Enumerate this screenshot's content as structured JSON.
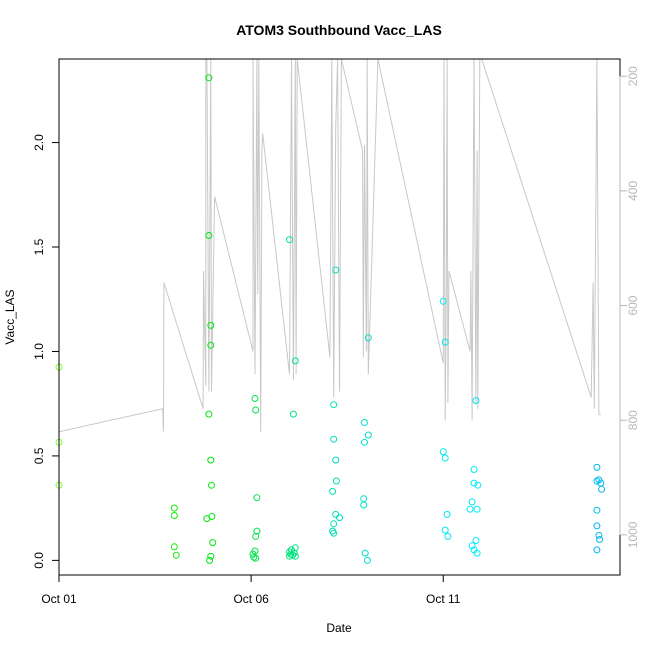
{
  "chart_data": {
    "type": "scatter",
    "title": "ATOM3 Southbound Vacc_LAS",
    "xlabel": "Date",
    "ylabel": "Vacc_LAS",
    "x_ticks": [
      "Oct 01",
      "Oct 06",
      "Oct 11"
    ],
    "x_tick_days": [
      1,
      6,
      11
    ],
    "xlim_days": [
      1,
      15.6
    ],
    "ylim": [
      -0.07,
      2.4
    ],
    "y_ticks": [
      0.0,
      0.5,
      1.0,
      1.5,
      2.0
    ],
    "y_tick_labels": [
      "0.0",
      "0.5",
      "1.0",
      "1.5",
      "2.0"
    ],
    "y2_ticks": [
      200,
      400,
      600,
      800,
      1000
    ],
    "y2_tick_labels": [
      "200",
      "400",
      "600",
      "800",
      "1000"
    ],
    "y2lim_reversed": [
      170,
      1070
    ],
    "grid": false,
    "legend": "none",
    "point_color_scale": [
      "#7cff2e",
      "#00e800",
      "#00e0c0",
      "#00eaff",
      "#00b0f0"
    ],
    "line_color": "#c8c8c8",
    "scatter": [
      {
        "x": 1.0,
        "y": 0.925
      },
      {
        "x": 1.0,
        "y": 0.565
      },
      {
        "x": 1.0,
        "y": 0.36
      },
      {
        "x": 4.0,
        "y": 0.25
      },
      {
        "x": 4.0,
        "y": 0.215
      },
      {
        "x": 4.0,
        "y": 0.065
      },
      {
        "x": 4.05,
        "y": 0.025
      },
      {
        "x": 4.9,
        "y": 2.31
      },
      {
        "x": 4.9,
        "y": 1.555
      },
      {
        "x": 4.95,
        "y": 1.125
      },
      {
        "x": 4.95,
        "y": 1.03
      },
      {
        "x": 4.9,
        "y": 0.7
      },
      {
        "x": 4.95,
        "y": 0.48
      },
      {
        "x": 4.97,
        "y": 0.36
      },
      {
        "x": 4.98,
        "y": 0.21
      },
      {
        "x": 4.85,
        "y": 0.2
      },
      {
        "x": 5.0,
        "y": 0.085
      },
      {
        "x": 4.95,
        "y": 0.02
      },
      {
        "x": 4.92,
        "y": 0.0
      },
      {
        "x": 6.1,
        "y": 0.775
      },
      {
        "x": 6.12,
        "y": 0.72
      },
      {
        "x": 6.15,
        "y": 0.3
      },
      {
        "x": 6.15,
        "y": 0.14
      },
      {
        "x": 6.12,
        "y": 0.115
      },
      {
        "x": 6.1,
        "y": 0.045
      },
      {
        "x": 6.05,
        "y": 0.03
      },
      {
        "x": 6.07,
        "y": 0.015
      },
      {
        "x": 6.12,
        "y": 0.01
      },
      {
        "x": 7.0,
        "y": 1.535
      },
      {
        "x": 7.15,
        "y": 0.955
      },
      {
        "x": 7.1,
        "y": 0.7
      },
      {
        "x": 7.15,
        "y": 0.06
      },
      {
        "x": 7.05,
        "y": 0.05
      },
      {
        "x": 7.0,
        "y": 0.04
      },
      {
        "x": 7.12,
        "y": 0.035
      },
      {
        "x": 7.03,
        "y": 0.03
      },
      {
        "x": 7.08,
        "y": 0.025
      },
      {
        "x": 7.0,
        "y": 0.02
      },
      {
        "x": 7.15,
        "y": 0.02
      },
      {
        "x": 8.2,
        "y": 1.39
      },
      {
        "x": 8.15,
        "y": 0.745
      },
      {
        "x": 8.15,
        "y": 0.58
      },
      {
        "x": 8.2,
        "y": 0.48
      },
      {
        "x": 8.22,
        "y": 0.38
      },
      {
        "x": 8.12,
        "y": 0.33
      },
      {
        "x": 8.2,
        "y": 0.22
      },
      {
        "x": 8.3,
        "y": 0.205
      },
      {
        "x": 8.15,
        "y": 0.175
      },
      {
        "x": 8.12,
        "y": 0.14
      },
      {
        "x": 8.15,
        "y": 0.13
      },
      {
        "x": 9.05,
        "y": 1.065
      },
      {
        "x": 8.95,
        "y": 0.66
      },
      {
        "x": 9.05,
        "y": 0.6
      },
      {
        "x": 8.95,
        "y": 0.565
      },
      {
        "x": 8.93,
        "y": 0.295
      },
      {
        "x": 8.93,
        "y": 0.265
      },
      {
        "x": 8.97,
        "y": 0.035
      },
      {
        "x": 9.03,
        "y": 0.0
      },
      {
        "x": 11.0,
        "y": 1.24
      },
      {
        "x": 11.05,
        "y": 1.045
      },
      {
        "x": 11.0,
        "y": 0.52
      },
      {
        "x": 11.05,
        "y": 0.49
      },
      {
        "x": 11.1,
        "y": 0.22
      },
      {
        "x": 11.05,
        "y": 0.145
      },
      {
        "x": 11.12,
        "y": 0.115
      },
      {
        "x": 11.85,
        "y": 0.765
      },
      {
        "x": 11.8,
        "y": 0.435
      },
      {
        "x": 11.8,
        "y": 0.37
      },
      {
        "x": 11.9,
        "y": 0.36
      },
      {
        "x": 11.75,
        "y": 0.28
      },
      {
        "x": 11.7,
        "y": 0.245
      },
      {
        "x": 11.88,
        "y": 0.245
      },
      {
        "x": 11.85,
        "y": 0.095
      },
      {
        "x": 11.75,
        "y": 0.07
      },
      {
        "x": 11.8,
        "y": 0.05
      },
      {
        "x": 11.88,
        "y": 0.035
      },
      {
        "x": 15.0,
        "y": 0.445
      },
      {
        "x": 15.05,
        "y": 0.385
      },
      {
        "x": 15.1,
        "y": 0.37
      },
      {
        "x": 15.0,
        "y": 0.38
      },
      {
        "x": 15.12,
        "y": 0.34
      },
      {
        "x": 15.0,
        "y": 0.24
      },
      {
        "x": 15.0,
        "y": 0.165
      },
      {
        "x": 15.05,
        "y": 0.12
      },
      {
        "x": 15.07,
        "y": 0.1
      },
      {
        "x": 15.0,
        "y": 0.05
      }
    ],
    "line_series": [
      {
        "x": 1.0,
        "y2": 170
      },
      {
        "x": 1.0,
        "y2": 820
      },
      {
        "x": 3.7,
        "y2": 780
      },
      {
        "x": 3.72,
        "y2": 820
      },
      {
        "x": 3.73,
        "y2": 560
      },
      {
        "x": 4.75,
        "y2": 780
      },
      {
        "x": 4.76,
        "y2": 540
      },
      {
        "x": 4.82,
        "y2": 740
      },
      {
        "x": 4.82,
        "y2": 170
      },
      {
        "x": 4.85,
        "y2": 170
      },
      {
        "x": 4.9,
        "y2": 750
      },
      {
        "x": 4.95,
        "y2": 170
      },
      {
        "x": 4.97,
        "y2": 750
      },
      {
        "x": 5.05,
        "y2": 410
      },
      {
        "x": 6.05,
        "y2": 680
      },
      {
        "x": 6.05,
        "y2": 170
      },
      {
        "x": 6.1,
        "y2": 720
      },
      {
        "x": 6.15,
        "y2": 170
      },
      {
        "x": 6.17,
        "y2": 580
      },
      {
        "x": 6.2,
        "y2": 170
      },
      {
        "x": 6.25,
        "y2": 820
      },
      {
        "x": 6.28,
        "y2": 330
      },
      {
        "x": 6.3,
        "y2": 300
      },
      {
        "x": 7.0,
        "y2": 720
      },
      {
        "x": 7.05,
        "y2": 170
      },
      {
        "x": 7.1,
        "y2": 730
      },
      {
        "x": 7.15,
        "y2": 170
      },
      {
        "x": 7.17,
        "y2": 720
      },
      {
        "x": 7.2,
        "y2": 170
      },
      {
        "x": 8.05,
        "y2": 690
      },
      {
        "x": 8.1,
        "y2": 170
      },
      {
        "x": 8.15,
        "y2": 760
      },
      {
        "x": 8.2,
        "y2": 290
      },
      {
        "x": 8.25,
        "y2": 170
      },
      {
        "x": 8.3,
        "y2": 750
      },
      {
        "x": 8.35,
        "y2": 170
      },
      {
        "x": 8.9,
        "y2": 330
      },
      {
        "x": 8.92,
        "y2": 690
      },
      {
        "x": 8.95,
        "y2": 320
      },
      {
        "x": 9.0,
        "y2": 680
      },
      {
        "x": 9.02,
        "y2": 170
      },
      {
        "x": 9.05,
        "y2": 720
      },
      {
        "x": 9.3,
        "y2": 170
      },
      {
        "x": 11.0,
        "y2": 700
      },
      {
        "x": 11.02,
        "y2": 170
      },
      {
        "x": 11.05,
        "y2": 800
      },
      {
        "x": 11.08,
        "y2": 560
      },
      {
        "x": 11.1,
        "y2": 170
      },
      {
        "x": 11.12,
        "y2": 770
      },
      {
        "x": 11.15,
        "y2": 540
      },
      {
        "x": 11.7,
        "y2": 680
      },
      {
        "x": 11.72,
        "y2": 540
      },
      {
        "x": 11.75,
        "y2": 800
      },
      {
        "x": 11.8,
        "y2": 170
      },
      {
        "x": 11.85,
        "y2": 770
      },
      {
        "x": 11.88,
        "y2": 330
      },
      {
        "x": 11.9,
        "y2": 780
      },
      {
        "x": 11.95,
        "y2": 170
      },
      {
        "x": 12.0,
        "y2": 170
      },
      {
        "x": 14.85,
        "y2": 760
      },
      {
        "x": 14.9,
        "y2": 560
      },
      {
        "x": 14.93,
        "y2": 780
      },
      {
        "x": 15.0,
        "y2": 170
      },
      {
        "x": 15.05,
        "y2": 790
      },
      {
        "x": 15.1,
        "y2": 790
      }
    ]
  }
}
